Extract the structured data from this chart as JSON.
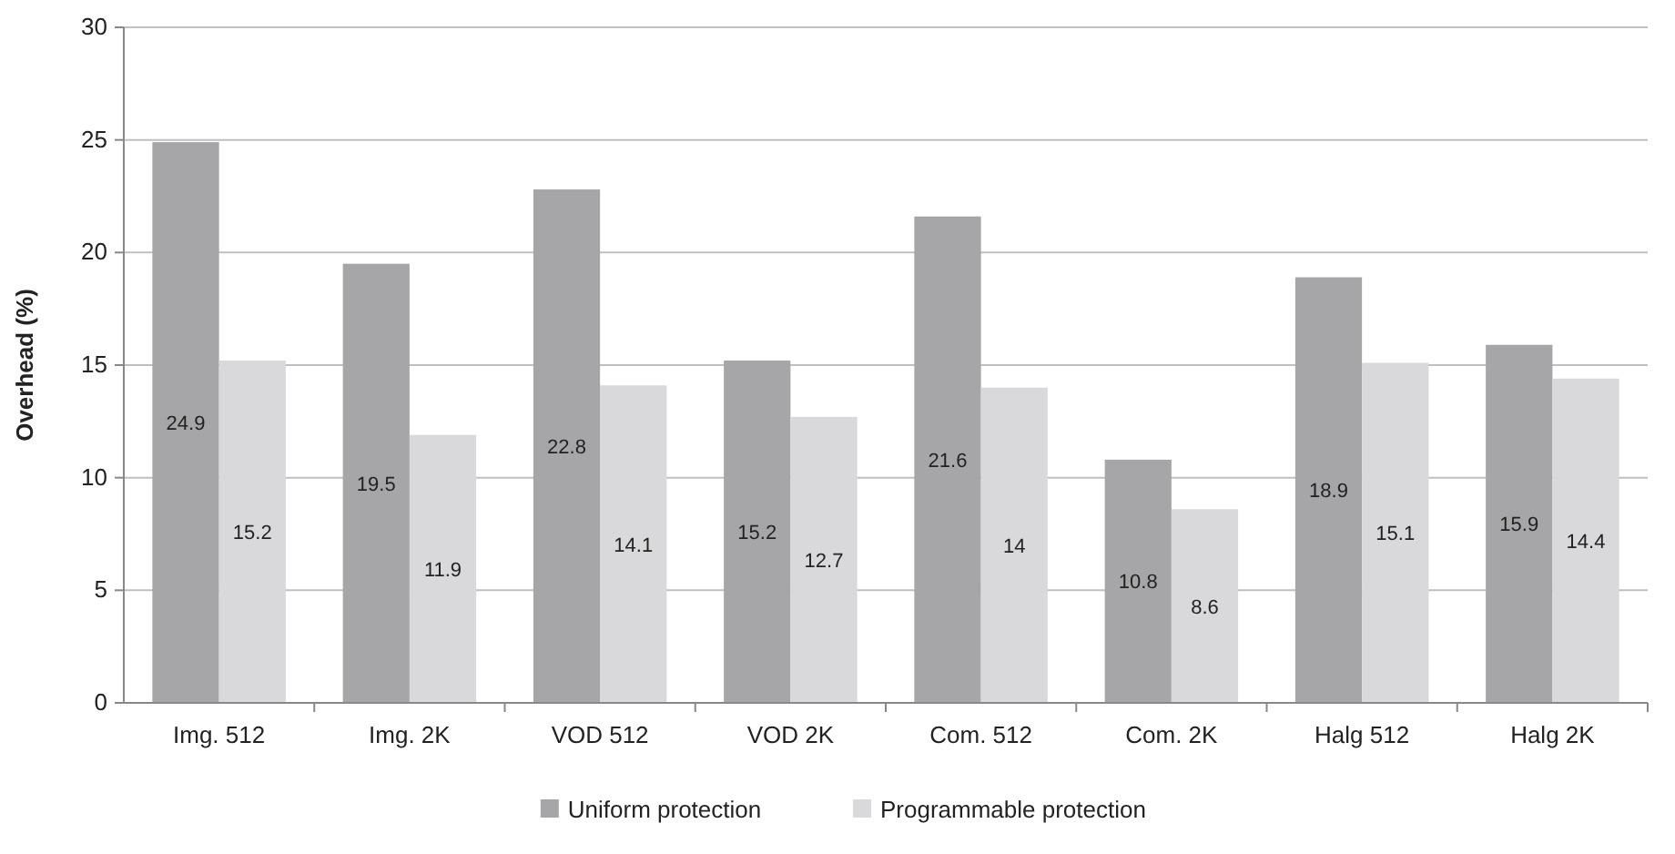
{
  "chart_data": {
    "type": "bar",
    "ylabel": "Overhead (%)",
    "categories": [
      "Img. 512",
      "Img. 2K",
      "VOD 512",
      "VOD 2K",
      "Com. 512",
      "Com. 2K",
      "Halg 512",
      "Halg 2K"
    ],
    "series": [
      {
        "name": "Uniform protection",
        "color": "#a6a6a8",
        "values": [
          24.9,
          19.5,
          22.8,
          15.2,
          21.6,
          10.8,
          18.9,
          15.9
        ]
      },
      {
        "name": "Programmable protection",
        "color": "#d9d9db",
        "values": [
          15.2,
          11.9,
          14.1,
          12.7,
          14,
          8.6,
          15.1,
          14.4
        ]
      }
    ],
    "ylim": [
      0,
      30
    ],
    "yticks": [
      0,
      5,
      10,
      15,
      20,
      25,
      30
    ],
    "grid": "y",
    "legend": "bottom",
    "data_labels": true
  }
}
